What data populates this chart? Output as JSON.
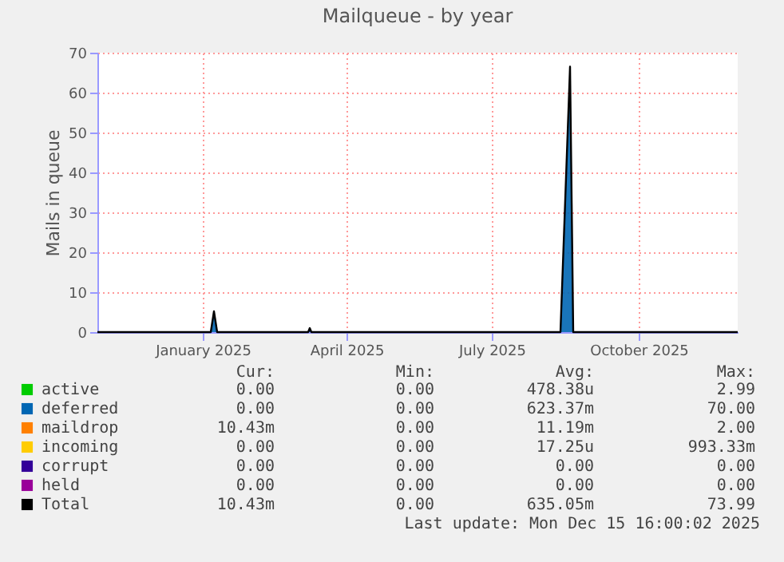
{
  "chart_data": {
    "type": "line",
    "title": "Mailqueue - by year",
    "ylabel": "Mails in queue",
    "x": [
      "2024-10-27",
      "2025-01-06",
      "2025-01-08",
      "2025-01-10",
      "2025-03-08",
      "2025-03-09",
      "2025-03-10",
      "2025-08-13",
      "2025-08-19",
      "2025-08-21",
      "2025-12-02"
    ],
    "series": [
      {
        "name": "active",
        "color": "#00cc00",
        "values": [
          null,
          null,
          null,
          null,
          null,
          null,
          null,
          null,
          null,
          null,
          null
        ]
      },
      {
        "name": "deferred",
        "type": "area",
        "color": "#0066b3",
        "values": [
          null,
          0,
          5,
          0,
          0,
          0.8,
          0,
          0,
          64,
          0,
          null
        ]
      },
      {
        "name": "maildrop",
        "color": "#ff8000",
        "values": [
          null,
          null,
          null,
          null,
          null,
          null,
          null,
          null,
          null,
          null,
          null
        ]
      },
      {
        "name": "incoming",
        "color": "#ffcc00",
        "values": [
          null,
          null,
          null,
          null,
          null,
          null,
          null,
          null,
          null,
          null,
          null
        ]
      },
      {
        "name": "corrupt",
        "color": "#330099",
        "values": [
          null,
          null,
          null,
          null,
          null,
          null,
          null,
          null,
          null,
          null,
          null
        ]
      },
      {
        "name": "held",
        "color": "#990099",
        "values": [
          null,
          null,
          null,
          null,
          null,
          null,
          null,
          null,
          null,
          null,
          null
        ]
      },
      {
        "name": "Total",
        "color": "#000000",
        "values": [
          0,
          0,
          5.2,
          0,
          0,
          1,
          0,
          0,
          66.5,
          0,
          0
        ]
      }
    ],
    "xlim": [
      "2024-10-27",
      "2025-12-02"
    ],
    "xticks": [
      {
        "value": "2025-01-01",
        "label": "January 2025"
      },
      {
        "value": "2025-04-01",
        "label": "April 2025"
      },
      {
        "value": "2025-07-01",
        "label": "July 2025"
      },
      {
        "value": "2025-10-01",
        "label": "October 2025"
      }
    ],
    "ylim": [
      0,
      70
    ],
    "yticks": [
      0,
      10,
      20,
      30,
      40,
      50,
      60,
      70
    ],
    "grid": true,
    "legend": "bottom",
    "annotations": [
      "Cur:",
      "Min:",
      "Avg:",
      "Max:",
      "0.00",
      "0.00",
      "478.38u",
      "2.99",
      "0.00",
      "0.00",
      "623.37m",
      "70.00",
      "10.43m",
      "0.00",
      "11.19m",
      "2.00",
      "0.00",
      "0.00",
      "17.25u",
      "993.33m",
      "0.00",
      "0.00",
      "0.00",
      "0.00",
      "0.00",
      "0.00",
      "0.00",
      "0.00",
      "10.43m",
      "0.00",
      "635.05m",
      "73.99",
      "Last update: Mon Dec 15 16:00:02 2025"
    ]
  }
}
